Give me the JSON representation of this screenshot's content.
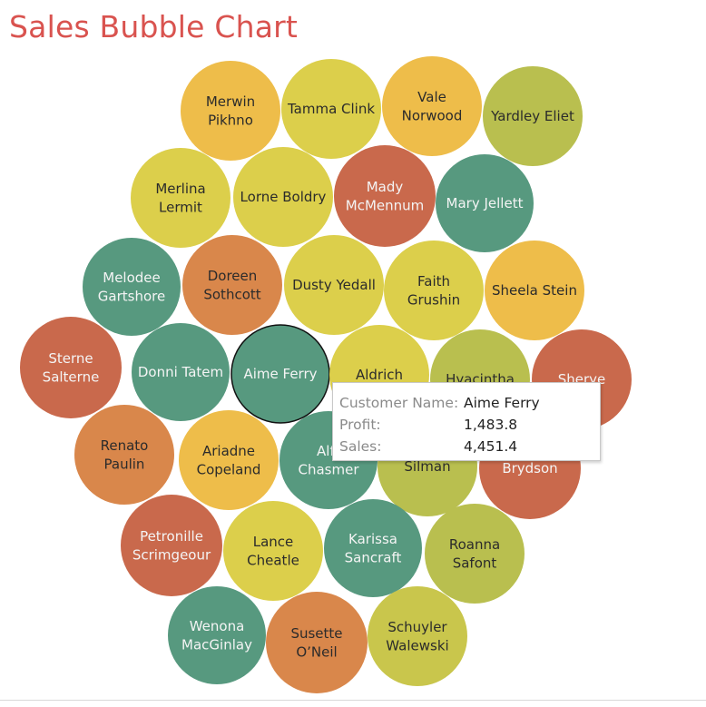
{
  "title": "Sales Bubble Chart",
  "colors": {
    "title": "#d9534f",
    "teal": "#57997f",
    "yellow": "#dccf4b",
    "gold": "#eebd4a",
    "orange": "#d9874b",
    "rust": "#c9694c",
    "olive": "#b9bf4f",
    "lime": "#c9c64c"
  },
  "chart_data": {
    "type": "bubble",
    "title": "Sales Bubble Chart",
    "size_field": "Sales",
    "color_field": "Profit",
    "bubbles": [
      {
        "name": "Merwin Pikhno",
        "lines": [
          "Merwin",
          "Pikhno"
        ],
        "color": "gold"
      },
      {
        "name": "Tamma Clink",
        "lines": [
          "Tamma Clink"
        ],
        "color": "yellow"
      },
      {
        "name": "Vale Norwood",
        "lines": [
          "Vale",
          "Norwood"
        ],
        "color": "gold"
      },
      {
        "name": "Yardley Eliet",
        "lines": [
          "Yardley Eliet"
        ],
        "color": "olive"
      },
      {
        "name": "Merlina Lermit",
        "lines": [
          "Merlina",
          "Lermit"
        ],
        "color": "yellow"
      },
      {
        "name": "Lorne Boldry",
        "lines": [
          "Lorne Boldry"
        ],
        "color": "yellow"
      },
      {
        "name": "Mady McMennum",
        "lines": [
          "Mady",
          "McMennum"
        ],
        "color": "rust"
      },
      {
        "name": "Mary Jellett",
        "lines": [
          "Mary Jellett"
        ],
        "color": "teal"
      },
      {
        "name": "Melodee Gartshore",
        "lines": [
          "Melodee",
          "Gartshore"
        ],
        "color": "teal"
      },
      {
        "name": "Doreen Sothcott",
        "lines": [
          "Doreen",
          "Sothcott"
        ],
        "color": "orange"
      },
      {
        "name": "Dusty Yedall",
        "lines": [
          "Dusty Yedall"
        ],
        "color": "yellow"
      },
      {
        "name": "Faith Grushin",
        "lines": [
          "Faith",
          "Grushin"
        ],
        "color": "yellow"
      },
      {
        "name": "Sheela Stein",
        "lines": [
          "Sheela Stein"
        ],
        "color": "gold"
      },
      {
        "name": "Sterne Salterne",
        "lines": [
          "Sterne",
          "Salterne"
        ],
        "color": "rust"
      },
      {
        "name": "Donni Tatem",
        "lines": [
          "Donni Tatem"
        ],
        "color": "teal"
      },
      {
        "name": "Aime Ferry",
        "lines": [
          "Aime Ferry"
        ],
        "color": "teal",
        "selected": true,
        "profit": 1483.8,
        "sales": 4451.4
      },
      {
        "name": "Aldrich",
        "lines": [
          "Aldrich"
        ],
        "color": "yellow"
      },
      {
        "name": "Hyacintha",
        "lines": [
          "Hyacintha"
        ],
        "color": "olive"
      },
      {
        "name": "Sherye",
        "lines": [
          "Sherye"
        ],
        "color": "rust"
      },
      {
        "name": "Renato Paulin",
        "lines": [
          "Renato",
          "Paulin"
        ],
        "color": "orange"
      },
      {
        "name": "Ariadne Copeland",
        "lines": [
          "Ariadne",
          "Copeland"
        ],
        "color": "gold"
      },
      {
        "name": "Alfr Chasmer",
        "lines": [
          "Alfr",
          "Chasmer"
        ],
        "color": "teal"
      },
      {
        "name": "Silman",
        "lines": [
          "Silman"
        ],
        "color": "olive"
      },
      {
        "name": "Brydson",
        "lines": [
          "Brydson"
        ],
        "color": "rust"
      },
      {
        "name": "Petronille Scrimgeour",
        "lines": [
          "Petronille",
          "Scrimgeour"
        ],
        "color": "rust"
      },
      {
        "name": "Lance Cheatle",
        "lines": [
          "Lance",
          "Cheatle"
        ],
        "color": "yellow"
      },
      {
        "name": "Karissa Sancraft",
        "lines": [
          "Karissa",
          "Sancraft"
        ],
        "color": "teal"
      },
      {
        "name": "Roanna Safont",
        "lines": [
          "Roanna",
          "Safont"
        ],
        "color": "olive"
      },
      {
        "name": "Wenona MacGinlay",
        "lines": [
          "Wenona",
          "MacGinlay"
        ],
        "color": "teal"
      },
      {
        "name": "Susette O'Neil",
        "lines": [
          "Susette",
          "O’Neil"
        ],
        "color": "orange"
      },
      {
        "name": "Schuyler Walewski",
        "lines": [
          "Schuyler",
          "Walewski"
        ],
        "color": "lime"
      }
    ]
  },
  "tooltip": {
    "rows": [
      {
        "key": "Customer Name:",
        "value": "Aime Ferry"
      },
      {
        "key": "Profit:",
        "value": "1,483.8"
      },
      {
        "key": "Sales:",
        "value": "4,451.4"
      }
    ]
  }
}
